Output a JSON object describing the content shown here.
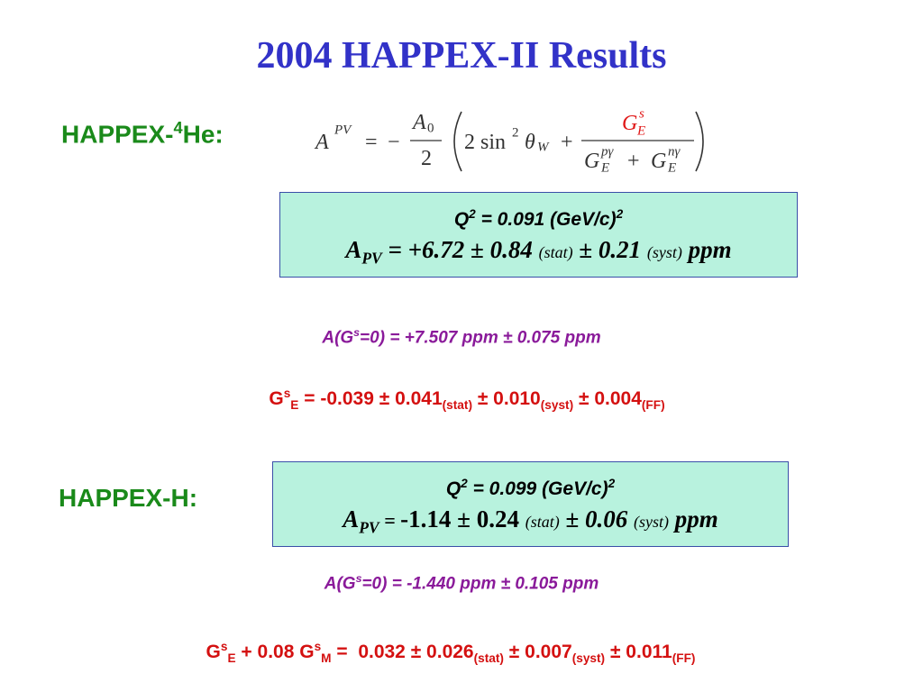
{
  "title": "2004 HAPPEX-II Results",
  "he4": {
    "label": [
      "HAPPEX-",
      "4",
      "He:"
    ],
    "formula": [
      "A",
      "PV",
      "=",
      "−",
      "A",
      "0",
      "2",
      "2 sin",
      "2",
      "θ",
      "W",
      "+",
      "G",
      "s",
      "E",
      "G",
      "pγ",
      "E",
      "+",
      "G",
      "nγ",
      "E"
    ],
    "box": {
      "q2": [
        "Q",
        "2",
        " = 0.091 (GeV/c)",
        "2"
      ],
      "apv": [
        "A",
        "PV",
        " = +6.72 ± 0.84 ",
        "(stat)",
        " ± 0.21 ",
        "(syst)",
        " ppm"
      ]
    },
    "asym": [
      "A(G",
      "s",
      "=0) = +7.507 ppm ± 0.075 ppm"
    ],
    "result": [
      "G",
      "s",
      "E",
      " = -0.039 ± 0.041",
      "(stat)",
      " ± 0.010",
      "(syst)",
      " ± 0.004",
      "(FF)"
    ]
  },
  "h": {
    "label": "HAPPEX-H:",
    "box": {
      "q2": [
        "Q",
        "2",
        " = 0.099 (GeV/c)",
        "2"
      ],
      "apv": [
        "A",
        "PV",
        " = ",
        "-1.14 ± 0.24 ",
        "(stat)",
        " ± 0.06 ",
        "(syst)",
        " ppm"
      ]
    },
    "asym": [
      "A(G",
      "s",
      "=0) = -1.440 ppm ± 0.105 ppm"
    ],
    "result": [
      "G",
      "s",
      "E",
      " + 0.08 G",
      "s",
      "M",
      " =  0.032 ± 0.026",
      "(stat)",
      " ± 0.007",
      "(syst)",
      " ± 0.011",
      "(FF)"
    ]
  }
}
